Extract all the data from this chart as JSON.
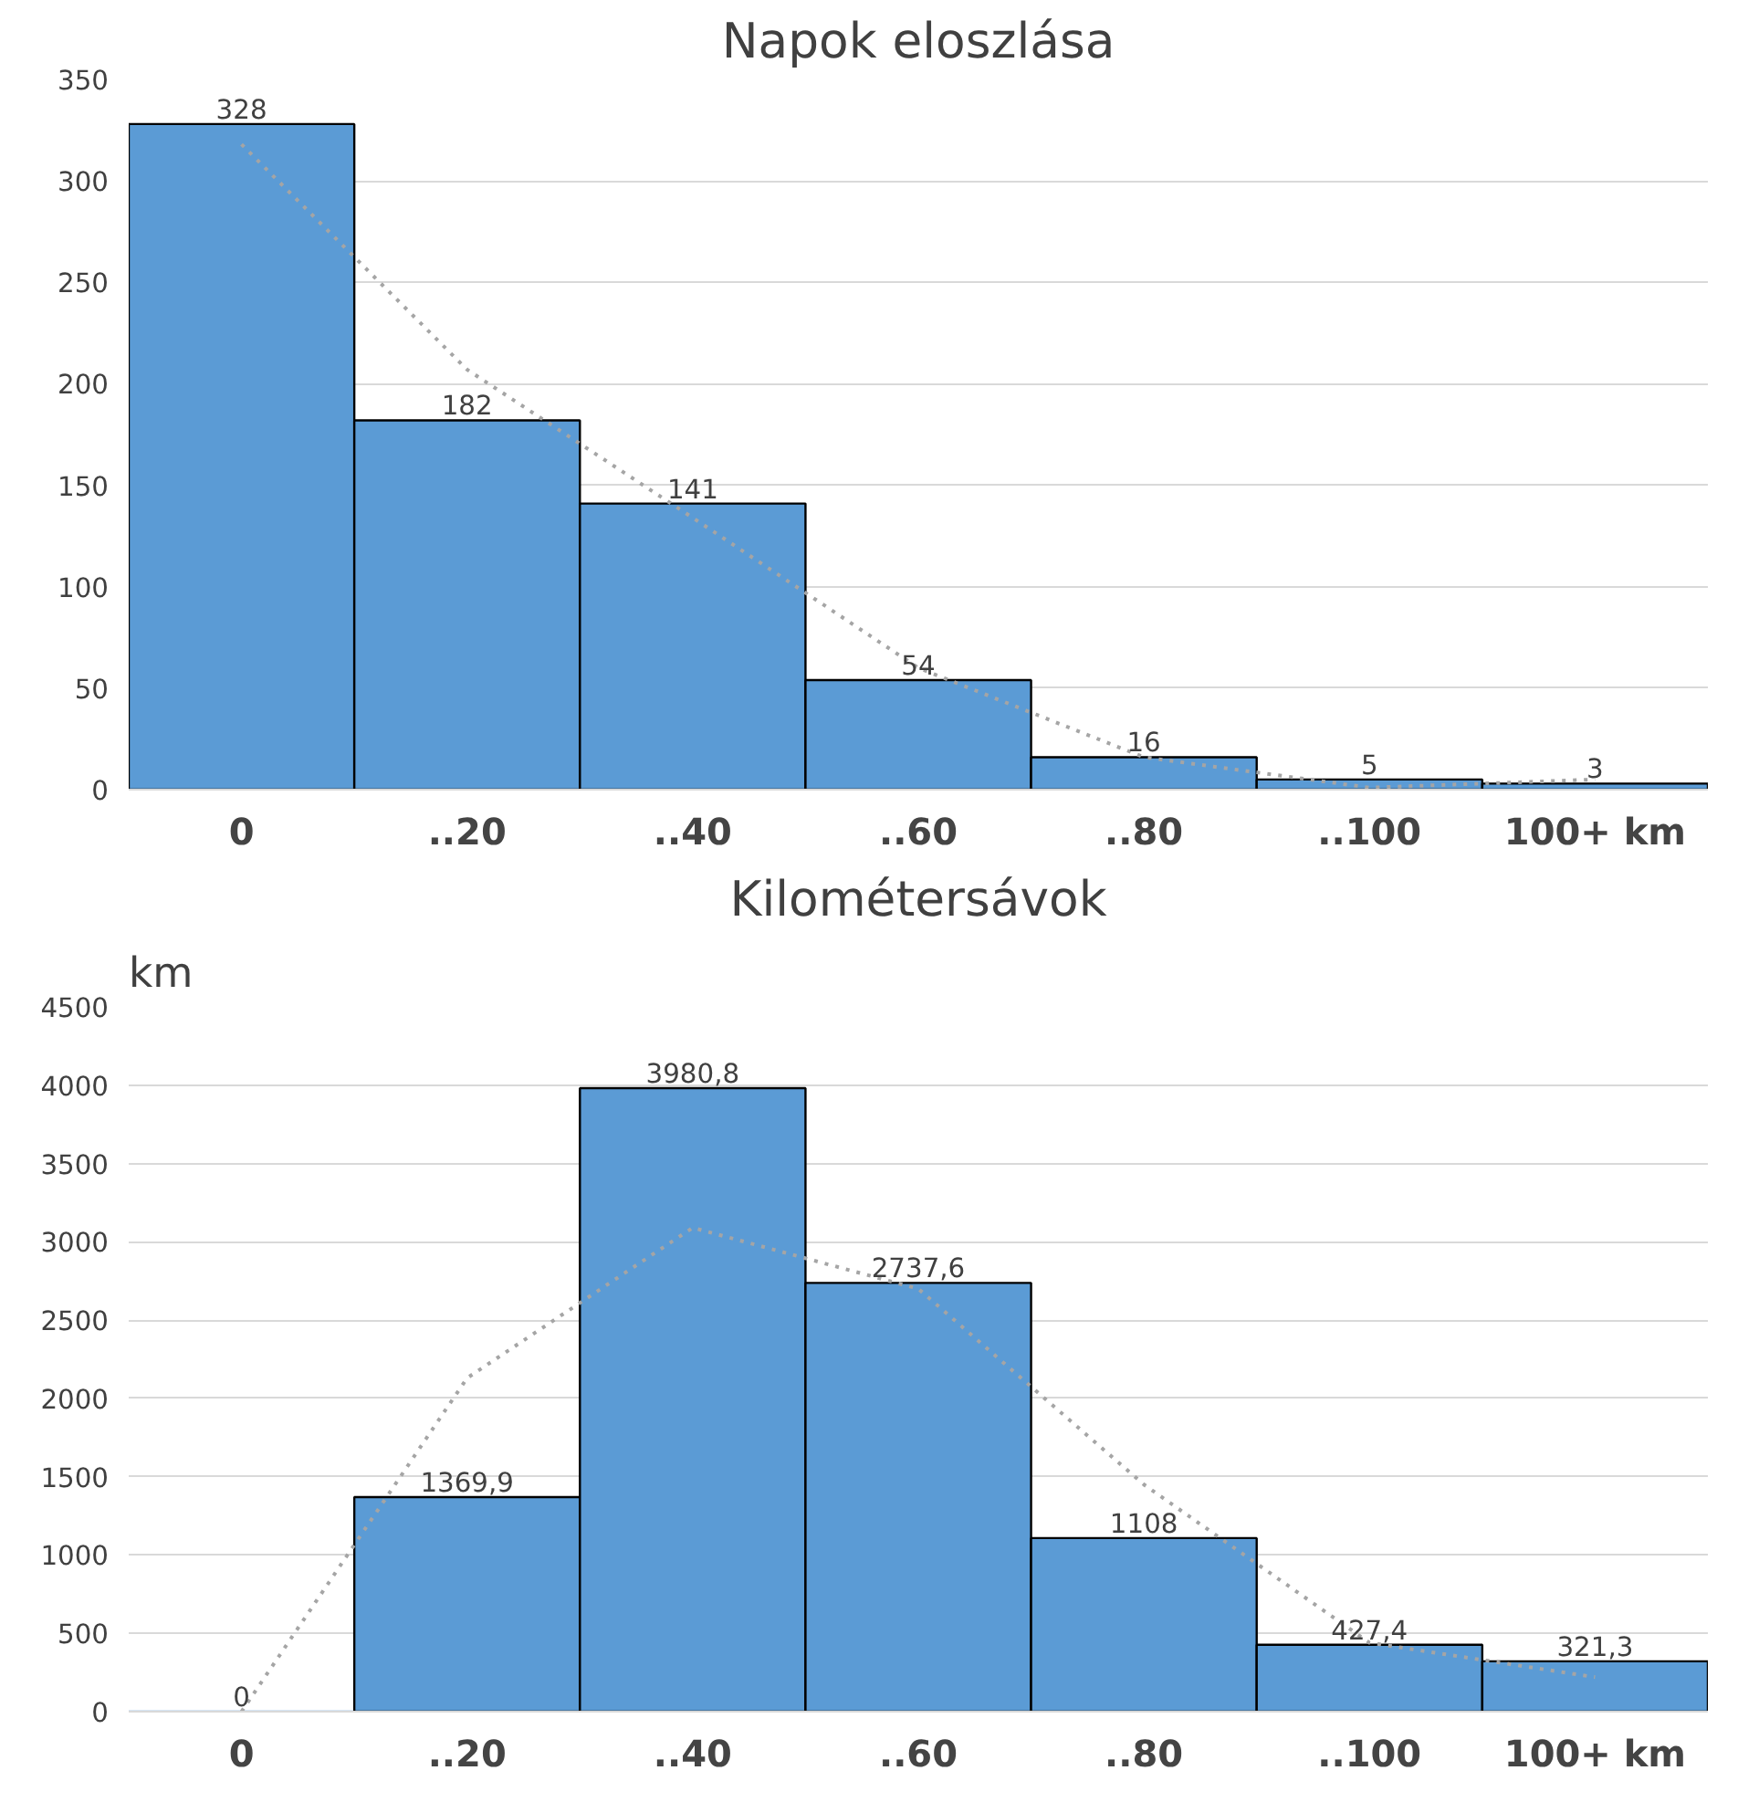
{
  "chart_data": [
    {
      "type": "bar",
      "title": "Napok eloszlása",
      "categories": [
        "0",
        "..20",
        "..40",
        "..60",
        "..80",
        "..100",
        "100+ km"
      ],
      "series": [
        {
          "color": "#5b9bd5",
          "values": [
            328,
            182,
            141,
            54,
            16,
            5,
            3
          ],
          "value_labels": [
            "328",
            "182",
            "141",
            "54",
            "16",
            "5",
            "3"
          ]
        },
        {
          "type": "line",
          "color": "#a5a5a5",
          "line_style": "dotted",
          "values": [
            318,
            207,
            134,
            60,
            16,
            1,
            5
          ]
        }
      ],
      "ylim": [
        0,
        350
      ],
      "yticks": [
        0,
        50,
        100,
        150,
        200,
        250,
        300,
        350
      ],
      "grid": "y"
    },
    {
      "type": "bar",
      "title": "Kilométersávok",
      "ylabel": "km",
      "categories": [
        "0",
        "..20",
        "..40",
        "..60",
        "..80",
        "..100",
        "100+ km"
      ],
      "series": [
        {
          "color": "#5b9bd5",
          "values": [
            0,
            1369.9,
            3980.8,
            2737.6,
            1108,
            427.4,
            321.3
          ],
          "value_labels": [
            "0",
            "1369,9",
            "3980,8",
            "2737,6",
            "1108",
            "427,4",
            "321,3"
          ]
        },
        {
          "type": "line",
          "color": "#a5a5a5",
          "line_style": "dotted",
          "values": [
            0,
            2130,
            3090,
            2700,
            1450,
            440,
            220
          ]
        }
      ],
      "ylim": [
        0,
        4500
      ],
      "yticks": [
        0,
        500,
        1000,
        1500,
        2000,
        2500,
        3000,
        3500,
        4000,
        4500
      ],
      "grid": "y"
    }
  ]
}
